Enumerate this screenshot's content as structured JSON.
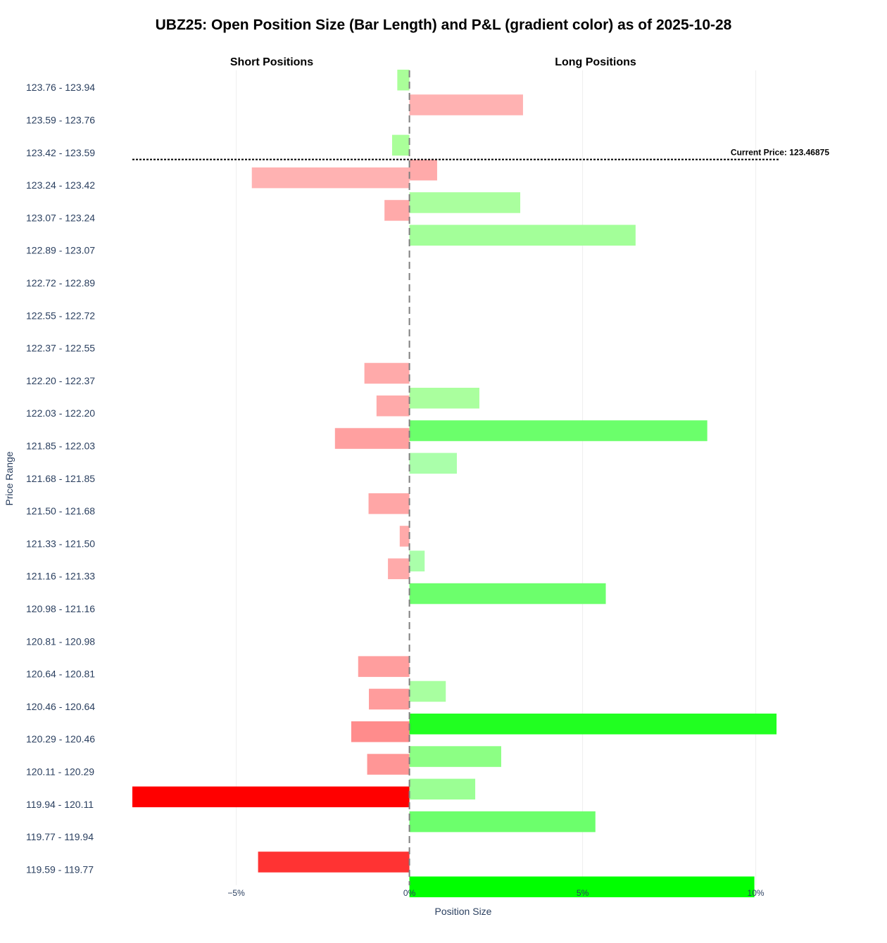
{
  "chart_data": {
    "type": "bar",
    "orientation": "horizontal",
    "title": "UBZ25: Open Position Size (Bar Length) and P&L (gradient color) as of 2025-10-28",
    "section_labels": {
      "short": "Short Positions",
      "long": "Long Positions"
    },
    "xlabel": "Position Size",
    "ylabel": "Price Range",
    "xlim": [
      -8.0,
      10.7
    ],
    "x_ticks": [
      {
        "value": -5,
        "label": "−5%"
      },
      {
        "value": 0,
        "label": "0%"
      },
      {
        "value": 5,
        "label": "5%"
      },
      {
        "value": 10,
        "label": "10%"
      }
    ],
    "grid": true,
    "categories": [
      "123.76 - 123.94",
      "123.59 - 123.76",
      "123.42 - 123.59",
      "123.24 - 123.42",
      "123.07 - 123.24",
      "122.89 - 123.07",
      "122.72 - 122.89",
      "122.55 - 122.72",
      "122.37 - 122.55",
      "122.20 - 122.37",
      "122.03 - 122.20",
      "121.85 - 122.03",
      "121.68 - 121.85",
      "121.50 - 121.68",
      "121.33 - 121.50",
      "121.16 - 121.33",
      "120.98 - 121.16",
      "120.81 - 120.98",
      "120.64 - 120.81",
      "120.46 - 120.64",
      "120.29 - 120.46",
      "120.11 - 120.29",
      "119.94 - 120.11",
      "119.77 - 119.94",
      "119.59 - 119.77"
    ],
    "series": [
      {
        "side": "short",
        "values": [
          -0.35,
          0,
          -0.5,
          -4.55,
          -0.72,
          0,
          0,
          0,
          0,
          -1.3,
          -0.95,
          -2.15,
          0,
          -1.18,
          -0.28,
          -0.62,
          0,
          0,
          -1.48,
          -1.17,
          -1.68,
          -1.22,
          -8.0,
          0,
          -4.37
        ],
        "colors": [
          "#aaff99",
          null,
          "#aaff99",
          "#ffb2b2",
          "#ffaaaa",
          null,
          null,
          null,
          null,
          "#ffaaaa",
          "#ffaaaa",
          "#ffa0a0",
          null,
          "#ffa6a6",
          "#ffaaaa",
          "#ffaaaa",
          null,
          null,
          "#ff9e9e",
          "#ff9c9c",
          "#ff8c8c",
          "#ff9696",
          "#ff0000",
          null,
          "#ff3333"
        ]
      },
      {
        "side": "long",
        "values": [
          3.28,
          0,
          0.8,
          3.2,
          6.53,
          0,
          0,
          0,
          0,
          2.02,
          8.6,
          1.37,
          0,
          0,
          0.44,
          5.67,
          0,
          0,
          1.05,
          10.6,
          2.65,
          1.9,
          5.37,
          0,
          9.96
        ],
        "colors": [
          "#ffb2b2",
          null,
          "#ffaaaa",
          "#aaff9e",
          "#a3ff99",
          null,
          null,
          null,
          null,
          "#aaff9e",
          "#6bff6b",
          "#aaffaa",
          null,
          null,
          "#aaffaa",
          "#6cff6c",
          null,
          null,
          "#a8ffa0",
          "#21ff21",
          "#8cff84",
          "#9bff94",
          "#6cff6c",
          null,
          "#00ff00"
        ]
      }
    ],
    "current_price": {
      "label": "Current Price: 123.46875",
      "value": 123.46875
    }
  }
}
